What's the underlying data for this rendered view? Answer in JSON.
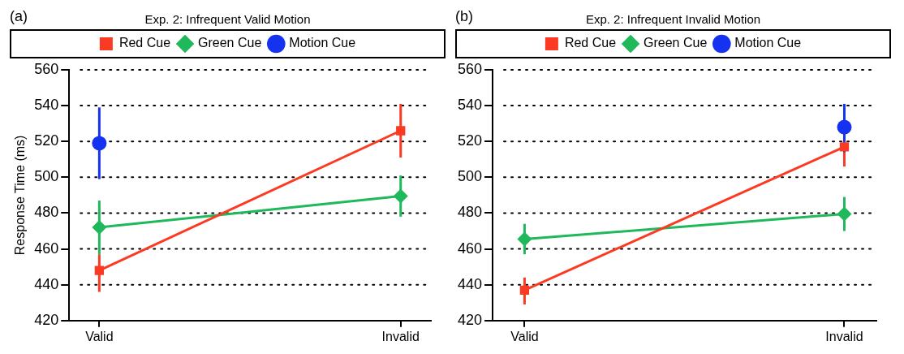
{
  "chart_data": [
    {
      "type": "line",
      "title": "Exp. 2: Infrequent Valid Motion",
      "ylabel": "Response Time (ms)",
      "annotations": [
        "(a)"
      ],
      "categories": [
        "Valid",
        "Invalid"
      ],
      "ylim": [
        420,
        560
      ],
      "yticks": [
        420,
        440,
        460,
        480,
        500,
        520,
        540,
        560
      ],
      "grid": "y",
      "legend": "top",
      "line_style": "solid",
      "series": [
        {
          "name": "Red Cue",
          "color": "#fb3a24",
          "marker": "square",
          "values": [
            448,
            526
          ],
          "errors": [
            [
              436,
              457
            ],
            [
              511,
              541
            ]
          ]
        },
        {
          "name": "Green Cue",
          "color": "#1fb85a",
          "marker": "diamond",
          "values": [
            472,
            489.5
          ],
          "errors": [
            [
              457,
              487
            ],
            [
              478,
              501
            ]
          ]
        },
        {
          "name": "Motion Cue",
          "color": "#1432f0",
          "marker": "circle",
          "values": [
            519,
            null
          ],
          "errors": [
            [
              499,
              539
            ],
            null
          ]
        }
      ]
    },
    {
      "type": "line",
      "title": "Exp. 2: Infrequent Invalid Motion",
      "annotations": [
        "(b)"
      ],
      "categories": [
        "Valid",
        "Invalid"
      ],
      "ylim": [
        420,
        560
      ],
      "yticks": [
        420,
        440,
        460,
        480,
        500,
        520,
        540,
        560
      ],
      "grid": "y",
      "legend": "top",
      "line_style": "solid",
      "series": [
        {
          "name": "Red Cue",
          "color": "#fb3a24",
          "marker": "square",
          "values": [
            437,
            517
          ],
          "errors": [
            [
              429,
              444
            ],
            [
              506,
              517
            ]
          ]
        },
        {
          "name": "Green Cue",
          "color": "#1fb85a",
          "marker": "diamond",
          "values": [
            465.5,
            479.5
          ],
          "errors": [
            [
              457,
              474
            ],
            [
              470,
              489
            ]
          ]
        },
        {
          "name": "Motion Cue",
          "color": "#1432f0",
          "marker": "circle",
          "values": [
            null,
            528
          ],
          "errors": [
            null,
            [
              514,
              541
            ]
          ]
        }
      ]
    }
  ]
}
